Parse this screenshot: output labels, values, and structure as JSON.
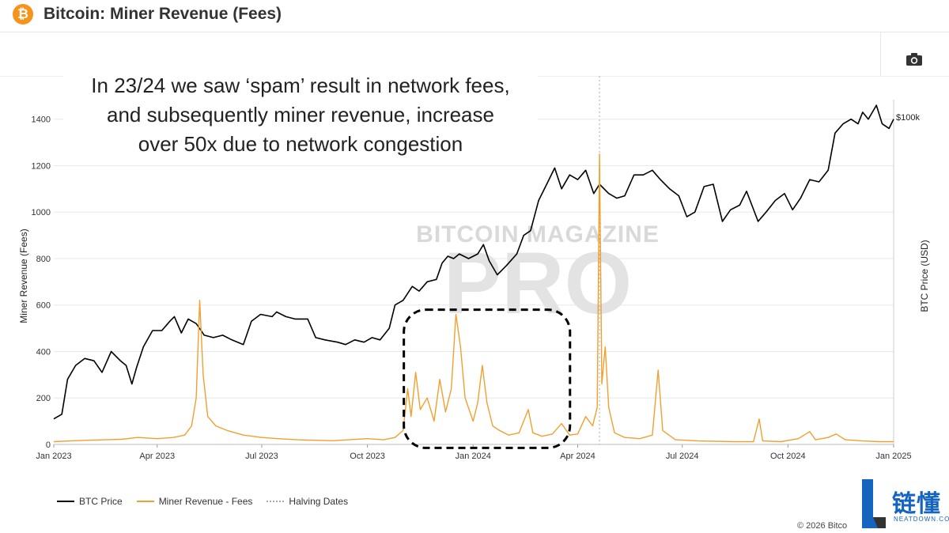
{
  "header": {
    "logo_icon": "bitcoin-logo-icon",
    "title": "Bitcoin: Miner Revenue (Fees)"
  },
  "toolbar": {
    "camera_icon": "camera-icon"
  },
  "annotation": {
    "lines": [
      "In 23/24 we saw ‘spam’ result in network fees,",
      "and subsequently miner revenue, increase",
      "over 50x due to network congestion"
    ]
  },
  "chart_data": {
    "type": "line",
    "ylabel": "Miner Revenue (Fees)",
    "ylabel_right": "BTC Price (USD)",
    "ylim": [
      0,
      1450
    ],
    "yticks": [
      0,
      200,
      400,
      600,
      800,
      1000,
      1200,
      1400
    ],
    "right_tick_label": "$100k",
    "xlim": [
      "2023-01-01",
      "2025-01-01"
    ],
    "xticks": [
      {
        "date": "2023-01-01",
        "label": "Jan 2023"
      },
      {
        "date": "2023-04-01",
        "label": "Apr 2023"
      },
      {
        "date": "2023-07-01",
        "label": "Jul 2023"
      },
      {
        "date": "2023-10-01",
        "label": "Oct 2023"
      },
      {
        "date": "2024-01-01",
        "label": "Jan 2024"
      },
      {
        "date": "2024-04-01",
        "label": "Apr 2024"
      },
      {
        "date": "2024-07-01",
        "label": "Jul 2024"
      },
      {
        "date": "2024-10-01",
        "label": "Oct 2024"
      },
      {
        "date": "2025-01-01",
        "label": "Jan 2025"
      }
    ],
    "grid": true,
    "legend_position": "bottom-left",
    "halving_dates": [
      "2024-04-20"
    ],
    "series": [
      {
        "name": "BTC Price",
        "color": "#000000",
        "points": [
          [
            "2023-01-01",
            110
          ],
          [
            "2023-01-08",
            130
          ],
          [
            "2023-01-13",
            280
          ],
          [
            "2023-01-20",
            340
          ],
          [
            "2023-01-28",
            370
          ],
          [
            "2023-02-05",
            360
          ],
          [
            "2023-02-12",
            310
          ],
          [
            "2023-02-20",
            400
          ],
          [
            "2023-02-28",
            360
          ],
          [
            "2023-03-05",
            340
          ],
          [
            "2023-03-10",
            260
          ],
          [
            "2023-03-14",
            330
          ],
          [
            "2023-03-20",
            420
          ],
          [
            "2023-03-28",
            490
          ],
          [
            "2023-04-05",
            490
          ],
          [
            "2023-04-12",
            530
          ],
          [
            "2023-04-16",
            550
          ],
          [
            "2023-04-22",
            480
          ],
          [
            "2023-04-28",
            540
          ],
          [
            "2023-05-05",
            520
          ],
          [
            "2023-05-12",
            470
          ],
          [
            "2023-05-20",
            460
          ],
          [
            "2023-05-28",
            470
          ],
          [
            "2023-06-05",
            450
          ],
          [
            "2023-06-15",
            430
          ],
          [
            "2023-06-22",
            530
          ],
          [
            "2023-06-30",
            560
          ],
          [
            "2023-07-10",
            550
          ],
          [
            "2023-07-14",
            570
          ],
          [
            "2023-07-22",
            550
          ],
          [
            "2023-07-30",
            540
          ],
          [
            "2023-08-10",
            540
          ],
          [
            "2023-08-17",
            460
          ],
          [
            "2023-08-25",
            450
          ],
          [
            "2023-09-05",
            440
          ],
          [
            "2023-09-12",
            430
          ],
          [
            "2023-09-20",
            450
          ],
          [
            "2023-09-28",
            440
          ],
          [
            "2023-10-05",
            460
          ],
          [
            "2023-10-12",
            450
          ],
          [
            "2023-10-20",
            500
          ],
          [
            "2023-10-25",
            600
          ],
          [
            "2023-11-01",
            620
          ],
          [
            "2023-11-09",
            680
          ],
          [
            "2023-11-15",
            660
          ],
          [
            "2023-11-22",
            700
          ],
          [
            "2023-11-30",
            710
          ],
          [
            "2023-12-05",
            780
          ],
          [
            "2023-12-10",
            810
          ],
          [
            "2023-12-15",
            800
          ],
          [
            "2023-12-20",
            820
          ],
          [
            "2023-12-28",
            800
          ],
          [
            "2024-01-05",
            820
          ],
          [
            "2024-01-10",
            860
          ],
          [
            "2024-01-15",
            790
          ],
          [
            "2024-01-22",
            730
          ],
          [
            "2024-01-30",
            770
          ],
          [
            "2024-02-08",
            820
          ],
          [
            "2024-02-14",
            900
          ],
          [
            "2024-02-20",
            920
          ],
          [
            "2024-02-27",
            1050
          ],
          [
            "2024-03-05",
            1120
          ],
          [
            "2024-03-12",
            1190
          ],
          [
            "2024-03-18",
            1100
          ],
          [
            "2024-03-25",
            1160
          ],
          [
            "2024-04-01",
            1140
          ],
          [
            "2024-04-08",
            1180
          ],
          [
            "2024-04-15",
            1080
          ],
          [
            "2024-04-20",
            1120
          ],
          [
            "2024-04-28",
            1080
          ],
          [
            "2024-05-05",
            1060
          ],
          [
            "2024-05-12",
            1070
          ],
          [
            "2024-05-20",
            1160
          ],
          [
            "2024-05-28",
            1160
          ],
          [
            "2024-06-05",
            1180
          ],
          [
            "2024-06-12",
            1140
          ],
          [
            "2024-06-20",
            1100
          ],
          [
            "2024-06-28",
            1070
          ],
          [
            "2024-07-05",
            980
          ],
          [
            "2024-07-12",
            1000
          ],
          [
            "2024-07-20",
            1110
          ],
          [
            "2024-07-28",
            1120
          ],
          [
            "2024-08-05",
            960
          ],
          [
            "2024-08-12",
            1010
          ],
          [
            "2024-08-20",
            1030
          ],
          [
            "2024-08-26",
            1090
          ],
          [
            "2024-09-05",
            960
          ],
          [
            "2024-09-12",
            1000
          ],
          [
            "2024-09-20",
            1050
          ],
          [
            "2024-09-28",
            1080
          ],
          [
            "2024-10-05",
            1010
          ],
          [
            "2024-10-12",
            1060
          ],
          [
            "2024-10-20",
            1140
          ],
          [
            "2024-10-28",
            1130
          ],
          [
            "2024-11-05",
            1180
          ],
          [
            "2024-11-11",
            1340
          ],
          [
            "2024-11-18",
            1380
          ],
          [
            "2024-11-25",
            1400
          ],
          [
            "2024-12-01",
            1380
          ],
          [
            "2024-12-05",
            1430
          ],
          [
            "2024-12-10",
            1400
          ],
          [
            "2024-12-17",
            1460
          ],
          [
            "2024-12-22",
            1380
          ],
          [
            "2024-12-28",
            1360
          ],
          [
            "2025-01-01",
            1400
          ]
        ]
      },
      {
        "name": "Miner Revenue - Fees",
        "color": "#f0a030",
        "points": [
          [
            "2023-01-01",
            12
          ],
          [
            "2023-01-15",
            15
          ],
          [
            "2023-02-01",
            18
          ],
          [
            "2023-02-15",
            20
          ],
          [
            "2023-03-01",
            22
          ],
          [
            "2023-03-15",
            30
          ],
          [
            "2023-04-01",
            25
          ],
          [
            "2023-04-15",
            30
          ],
          [
            "2023-04-25",
            40
          ],
          [
            "2023-05-01",
            80
          ],
          [
            "2023-05-05",
            200
          ],
          [
            "2023-05-08",
            620
          ],
          [
            "2023-05-11",
            300
          ],
          [
            "2023-05-15",
            120
          ],
          [
            "2023-05-22",
            80
          ],
          [
            "2023-06-01",
            60
          ],
          [
            "2023-06-15",
            40
          ],
          [
            "2023-07-01",
            30
          ],
          [
            "2023-07-15",
            25
          ],
          [
            "2023-08-01",
            20
          ],
          [
            "2023-08-15",
            18
          ],
          [
            "2023-09-01",
            16
          ],
          [
            "2023-09-15",
            20
          ],
          [
            "2023-10-01",
            25
          ],
          [
            "2023-10-15",
            20
          ],
          [
            "2023-10-25",
            30
          ],
          [
            "2023-11-01",
            60
          ],
          [
            "2023-11-05",
            240
          ],
          [
            "2023-11-08",
            120
          ],
          [
            "2023-11-12",
            310
          ],
          [
            "2023-11-16",
            150
          ],
          [
            "2023-11-22",
            200
          ],
          [
            "2023-11-28",
            100
          ],
          [
            "2023-12-03",
            280
          ],
          [
            "2023-12-08",
            140
          ],
          [
            "2023-12-13",
            240
          ],
          [
            "2023-12-17",
            560
          ],
          [
            "2023-12-21",
            420
          ],
          [
            "2023-12-25",
            200
          ],
          [
            "2024-01-01",
            100
          ],
          [
            "2024-01-05",
            180
          ],
          [
            "2024-01-09",
            340
          ],
          [
            "2024-01-13",
            180
          ],
          [
            "2024-01-18",
            80
          ],
          [
            "2024-01-24",
            60
          ],
          [
            "2024-02-01",
            40
          ],
          [
            "2024-02-10",
            50
          ],
          [
            "2024-02-18",
            150
          ],
          [
            "2024-02-22",
            50
          ],
          [
            "2024-03-01",
            35
          ],
          [
            "2024-03-10",
            45
          ],
          [
            "2024-03-18",
            90
          ],
          [
            "2024-03-25",
            40
          ],
          [
            "2024-04-01",
            45
          ],
          [
            "2024-04-08",
            120
          ],
          [
            "2024-04-14",
            80
          ],
          [
            "2024-04-18",
            160
          ],
          [
            "2024-04-20",
            1250
          ],
          [
            "2024-04-22",
            260
          ],
          [
            "2024-04-25",
            420
          ],
          [
            "2024-04-28",
            160
          ],
          [
            "2024-05-03",
            50
          ],
          [
            "2024-05-12",
            30
          ],
          [
            "2024-05-25",
            25
          ],
          [
            "2024-06-05",
            40
          ],
          [
            "2024-06-10",
            320
          ],
          [
            "2024-06-14",
            60
          ],
          [
            "2024-06-25",
            20
          ],
          [
            "2024-07-15",
            15
          ],
          [
            "2024-08-15",
            12
          ],
          [
            "2024-09-01",
            12
          ],
          [
            "2024-09-06",
            110
          ],
          [
            "2024-09-09",
            15
          ],
          [
            "2024-09-25",
            12
          ],
          [
            "2024-10-10",
            25
          ],
          [
            "2024-10-20",
            55
          ],
          [
            "2024-10-25",
            20
          ],
          [
            "2024-11-05",
            30
          ],
          [
            "2024-11-12",
            45
          ],
          [
            "2024-11-20",
            20
          ],
          [
            "2024-12-05",
            15
          ],
          [
            "2024-12-20",
            12
          ],
          [
            "2025-01-01",
            12
          ]
        ]
      }
    ],
    "legend": [
      {
        "label": "BTC Price",
        "color": "#000000",
        "style": "solid"
      },
      {
        "label": "Miner Revenue - Fees",
        "color": "#f0a030",
        "style": "solid"
      },
      {
        "label": "Halving Dates",
        "color": "#aaaaaa",
        "style": "dotted"
      }
    ]
  },
  "watermark": {
    "line1": "BITCOIN MAGAZINE",
    "line2": "PRO"
  },
  "footer": {
    "copyright": "© 2026 Bitco"
  },
  "corner_logo": {
    "text": "链懂",
    "sub": "NEATDOWN.COM"
  }
}
